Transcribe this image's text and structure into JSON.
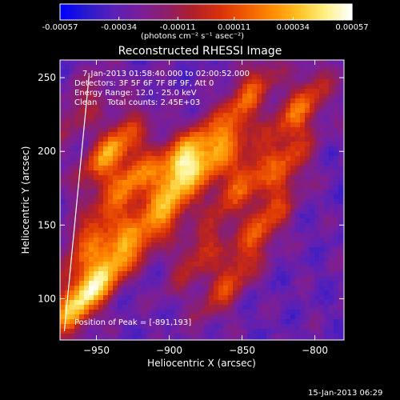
{
  "colorbar": {
    "tick_labels": [
      "-0.00057",
      "-0.00034",
      "-0.00011",
      "0.00011",
      "0.00034",
      "0.00057"
    ],
    "tick_values": [
      -0.00057,
      -0.00034,
      -0.00011,
      0.00011,
      0.00034,
      0.00057
    ],
    "unit_label": "(photons cm⁻² s⁻¹ asec⁻²)",
    "colors": [
      "#0000ff",
      "#2a1acc",
      "#5a20b8",
      "#7a1e9a",
      "#8c1e6a",
      "#b0202a",
      "#d8300a",
      "#f05a00",
      "#ff8a00",
      "#ffc020",
      "#fff080",
      "#ffffff"
    ]
  },
  "chart_data": {
    "type": "heatmap",
    "title": "Reconstructed RHESSI Image",
    "xlabel": "Heliocentric X (arcsec)",
    "ylabel": "Heliocentric Y (arcsec)",
    "xlim": [
      -975,
      -780
    ],
    "ylim": [
      72,
      262
    ],
    "x_ticks": [
      -950,
      -900,
      -850,
      -800
    ],
    "y_ticks": [
      100,
      150,
      200,
      250
    ],
    "x_tick_labels": [
      "−950",
      "−900",
      "−850",
      "−800"
    ],
    "y_tick_labels": [
      "100",
      "150",
      "200",
      "250"
    ],
    "annotations": [
      "7-Jan-2013 01:58:40.000 to 02:00:52.000",
      "Detectors: 3F 5F 6F 7F 8F 9F, Att 0",
      "Energy Range: 12.0 - 25.0 keV",
      "Clean    Total counts: 2.45E+03"
    ],
    "peak_label": "Position of Peak = [-891,193]",
    "peak_position": [
      -891,
      193
    ],
    "limb_line": [
      [
        -972,
        78
      ],
      [
        -955,
        252
      ]
    ],
    "bright_sources": [
      {
        "x": -891,
        "y": 193,
        "intensity": 1.0
      },
      {
        "x": -940,
        "y": 200,
        "intensity": 0.85
      },
      {
        "x": -925,
        "y": 180,
        "intensity": 0.7
      },
      {
        "x": -900,
        "y": 160,
        "intensity": 0.65
      },
      {
        "x": -865,
        "y": 200,
        "intensity": 0.7
      },
      {
        "x": -850,
        "y": 180,
        "intensity": 0.6
      },
      {
        "x": -835,
        "y": 150,
        "intensity": 0.55
      },
      {
        "x": -810,
        "y": 230,
        "intensity": 0.65
      },
      {
        "x": -820,
        "y": 190,
        "intensity": 0.5
      },
      {
        "x": -955,
        "y": 140,
        "intensity": 0.6
      },
      {
        "x": -930,
        "y": 135,
        "intensity": 0.65
      },
      {
        "x": -965,
        "y": 95,
        "intensity": 0.7
      },
      {
        "x": -950,
        "y": 110,
        "intensity": 0.55
      },
      {
        "x": -880,
        "y": 130,
        "intensity": 0.45
      },
      {
        "x": -860,
        "y": 110,
        "intensity": 0.5
      },
      {
        "x": -845,
        "y": 240,
        "intensity": 0.55
      },
      {
        "x": -960,
        "y": 230,
        "intensity": 0.35
      }
    ]
  },
  "footer": {
    "date": "15-Jan-2013 06:29"
  }
}
